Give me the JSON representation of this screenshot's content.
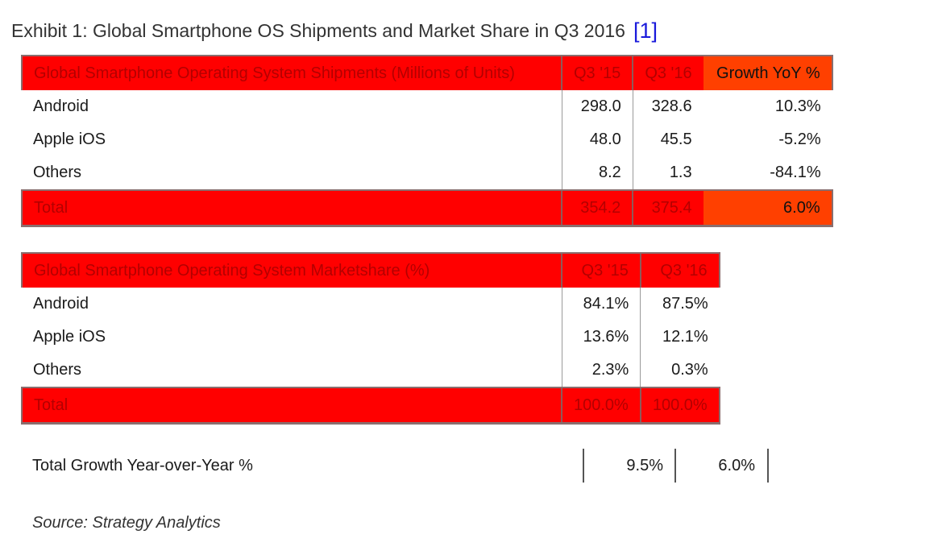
{
  "title": "Exhibit 1: Global Smartphone OS Shipments and Market Share in Q3 2016",
  "reference": "[1]",
  "shipments": {
    "header": [
      "Global Smartphone Operating System Shipments (Millions of Units)",
      "Q3 '15",
      "Q3 '16",
      "Growth YoY %"
    ],
    "rows": [
      [
        "Android",
        "298.0",
        "328.6",
        "10.3%"
      ],
      [
        "Apple iOS",
        "48.0",
        "45.5",
        "-5.2%"
      ],
      [
        "Others",
        "8.2",
        "1.3",
        "-84.1%"
      ]
    ],
    "total": [
      "Total",
      "354.2",
      "375.4",
      "6.0%"
    ]
  },
  "marketshare": {
    "header": [
      "Global Smartphone Operating System Marketshare (%)",
      "Q3 '15",
      "Q3 '16"
    ],
    "rows": [
      [
        "Android",
        "84.1%",
        "87.5%"
      ],
      [
        "Apple iOS",
        "13.6%",
        "12.1%"
      ],
      [
        "Others",
        "2.3%",
        "0.3%"
      ]
    ],
    "total": [
      "Total",
      "100.0%",
      "100.0%"
    ]
  },
  "growth": {
    "label": "Total Growth Year-over-Year %",
    "q3_15": "9.5%",
    "q3_16": "6.0%"
  },
  "source": "Source: Strategy Analytics",
  "colors": {
    "header_red": "#ff0000",
    "header_orange": "#ff4000",
    "link_blue": "#1a1adb"
  }
}
